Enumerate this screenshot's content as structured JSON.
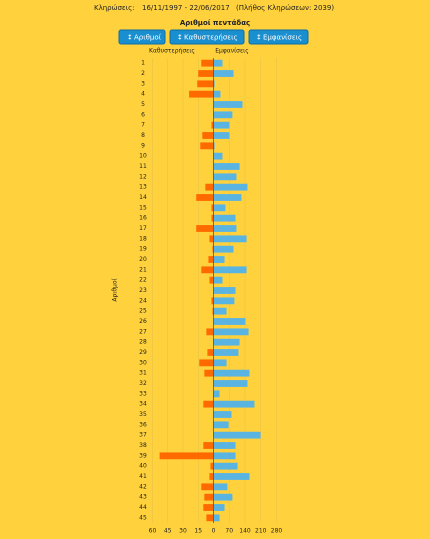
{
  "header": {
    "label": "Κληρώσεις:",
    "period": "16/11/1997 - 22/06/2017",
    "count_note": "(Πλήθος Κληρώσεων: 2039)"
  },
  "buttons": [
    "Αριθμοί",
    "Καθυστερήσεις",
    "Εμφανίσεις"
  ],
  "chart_data": {
    "type": "diverging_bar",
    "title": "Αριθμοί πεντάδας",
    "y_label": "Αριθμοί",
    "categories": [
      "1",
      "2",
      "3",
      "4",
      "5",
      "6",
      "7",
      "8",
      "9",
      "10",
      "11",
      "12",
      "13",
      "14",
      "15",
      "16",
      "17",
      "18",
      "19",
      "20",
      "21",
      "22",
      "23",
      "24",
      "25",
      "26",
      "27",
      "28",
      "29",
      "30",
      "31",
      "32",
      "33",
      "34",
      "35",
      "36",
      "37",
      "38",
      "39",
      "40",
      "41",
      "42",
      "43",
      "44",
      "45"
    ],
    "series": [
      {
        "name": "Καθυστερήσεις",
        "color": "#ff6a00",
        "axis": "x2",
        "values": [
          12,
          15,
          16,
          24,
          0,
          0,
          2,
          11,
          13,
          0,
          0,
          0,
          8,
          17,
          2,
          2,
          17,
          4,
          1,
          5,
          12,
          4,
          0,
          2,
          1,
          0,
          7,
          0,
          6,
          14,
          9,
          0,
          0,
          10,
          0,
          0,
          0,
          10,
          53,
          3,
          4,
          12,
          9,
          10,
          7
        ]
      },
      {
        "name": "Εμφανίσεις",
        "color": "#5ab4e2",
        "axis": "x",
        "values": [
          40,
          89,
          5,
          31,
          129,
          84,
          71,
          71,
          5,
          40,
          116,
          102,
          151,
          124,
          53,
          98,
          102,
          147,
          89,
          49,
          147,
          40,
          98,
          93,
          58,
          142,
          156,
          116,
          111,
          58,
          160,
          151,
          27,
          182,
          80,
          67,
          209,
          98,
          98,
          107,
          160,
          62,
          84,
          49,
          27
        ]
      }
    ],
    "xlim": [
      0,
      280
    ],
    "xticks": [
      0,
      70,
      140,
      210,
      280
    ],
    "x2lim": [
      0,
      60
    ],
    "x2ticks": [
      60,
      45,
      30,
      15
    ],
    "grid": true
  }
}
